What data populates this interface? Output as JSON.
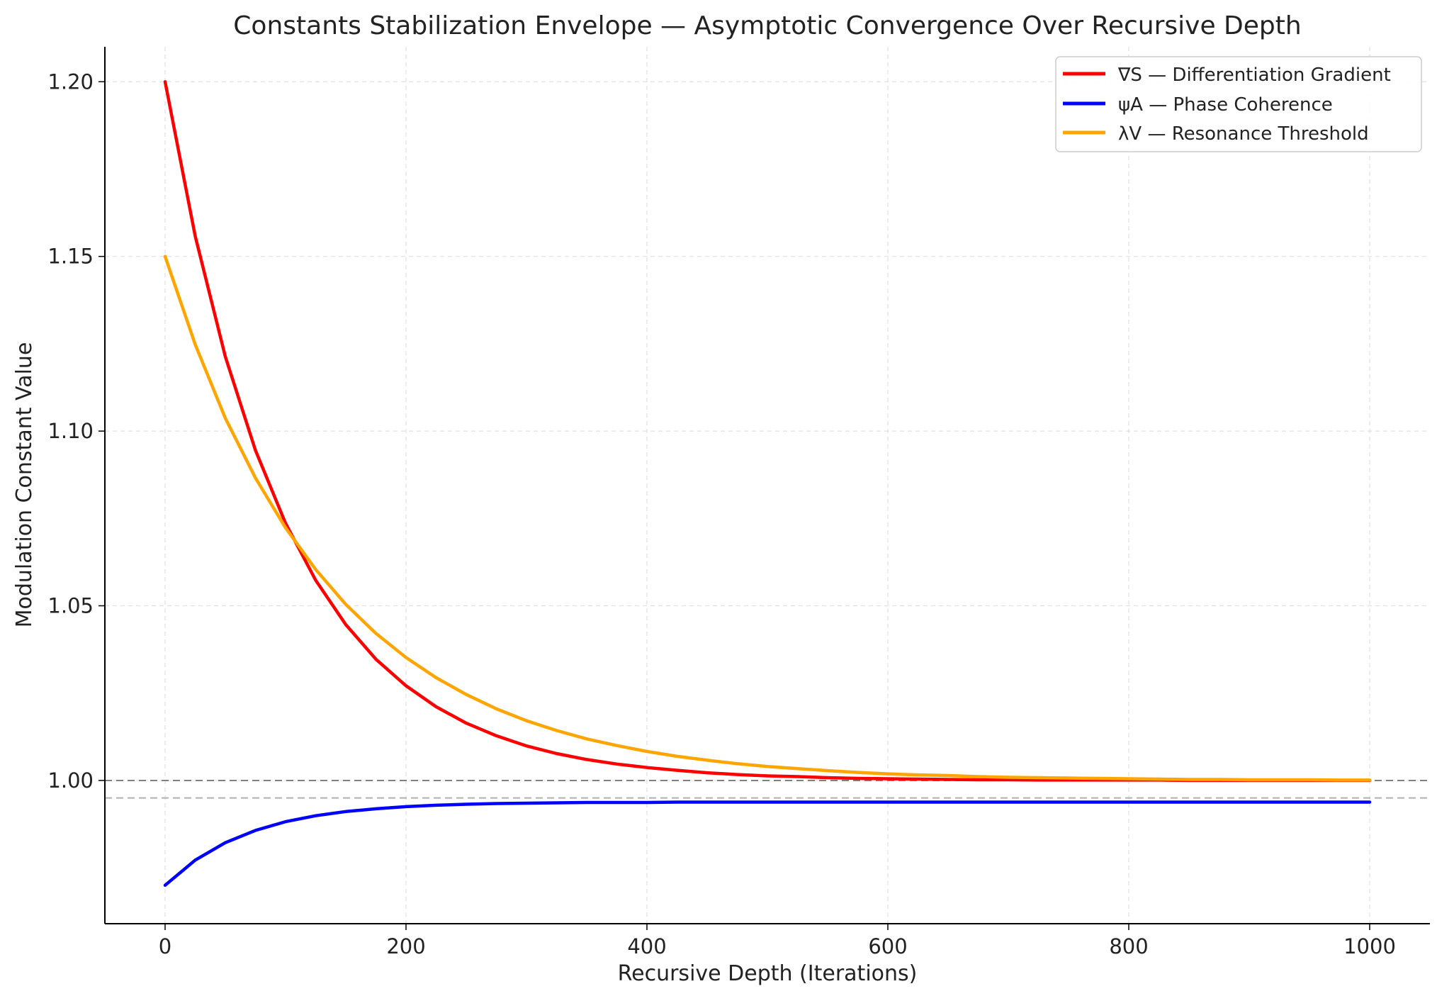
{
  "chart_data": {
    "type": "line",
    "title": "Constants Stabilization Envelope — Asymptotic Convergence Over Recursive Depth",
    "xlabel": "Recursive Depth (Iterations)",
    "ylabel": "Modulation Constant Value",
    "xlim": [
      -50,
      1050
    ],
    "ylim": [
      0.959,
      1.21
    ],
    "x_ticks": [
      0,
      200,
      400,
      600,
      800,
      1000
    ],
    "x_tick_labels": [
      "0",
      "200",
      "400",
      "600",
      "800",
      "1000"
    ],
    "y_ticks": [
      1.0,
      1.05,
      1.1,
      1.15,
      1.2
    ],
    "y_tick_labels": [
      "1.00",
      "1.05",
      "1.10",
      "1.15",
      "1.20"
    ],
    "grid": true,
    "legend_position": "top-right",
    "x": [
      0,
      25,
      50,
      75,
      100,
      125,
      150,
      175,
      200,
      225,
      250,
      275,
      300,
      325,
      350,
      375,
      400,
      425,
      450,
      475,
      500,
      525,
      550,
      575,
      600,
      625,
      650,
      675,
      700,
      725,
      750,
      775,
      800,
      825,
      850,
      875,
      900,
      925,
      950,
      975,
      1000
    ],
    "series": [
      {
        "name": "∇S — Differentiation Gradient",
        "color": "#ff0000",
        "values": [
          1.2,
          1.1558,
          1.1213,
          1.0945,
          1.0736,
          1.0573,
          1.0446,
          1.0347,
          1.0271,
          1.0211,
          1.0164,
          1.0128,
          1.0099,
          1.0077,
          1.006,
          1.0047,
          1.0037,
          1.0029,
          1.0022,
          1.0017,
          1.0013,
          1.0011,
          1.0008,
          1.0006,
          1.0005,
          1.0004,
          1.0003,
          1.0002,
          1.0002,
          1.0001,
          1.0001,
          1.0001,
          1.0001,
          1.0001,
          1.0,
          1.0,
          1.0,
          1.0,
          1.0,
          1.0,
          1.0
        ]
      },
      {
        "name": "ψA — Phase Coherence",
        "color": "#0000ff",
        "values": [
          0.97,
          0.9772,
          0.9822,
          0.9857,
          0.9882,
          0.9899,
          0.9911,
          0.9919,
          0.9925,
          0.9929,
          0.9932,
          0.9934,
          0.9935,
          0.9936,
          0.9937,
          0.9937,
          0.9937,
          0.9938,
          0.9938,
          0.9938,
          0.9938,
          0.9938,
          0.9938,
          0.9938,
          0.9938,
          0.9938,
          0.9938,
          0.9938,
          0.9938,
          0.9938,
          0.9938,
          0.9938,
          0.9938,
          0.9938,
          0.9938,
          0.9938,
          0.9938,
          0.9938,
          0.9938,
          0.9938,
          0.9938
        ]
      },
      {
        "name": "λV — Resonance Threshold",
        "color": "#ffa500",
        "values": [
          1.15,
          1.1248,
          1.1037,
          1.0866,
          1.0723,
          1.0604,
          1.0504,
          1.0421,
          1.0352,
          1.0294,
          1.0246,
          1.0205,
          1.0171,
          1.0143,
          1.0119,
          1.01,
          1.0083,
          1.0069,
          1.0058,
          1.0048,
          1.004,
          1.0034,
          1.0028,
          1.0023,
          1.0019,
          1.0016,
          1.0014,
          1.0011,
          1.0009,
          1.0008,
          1.0007,
          1.0006,
          1.0005,
          1.0004,
          1.0003,
          1.0003,
          1.0002,
          1.0002,
          1.0002,
          1.0001,
          1.0001
        ]
      }
    ],
    "reference_lines": [
      {
        "y": 1.0,
        "color": "#808080",
        "style": "dashed"
      },
      {
        "y": 0.995,
        "color": "#b0b0b0",
        "style": "dashed"
      }
    ]
  }
}
